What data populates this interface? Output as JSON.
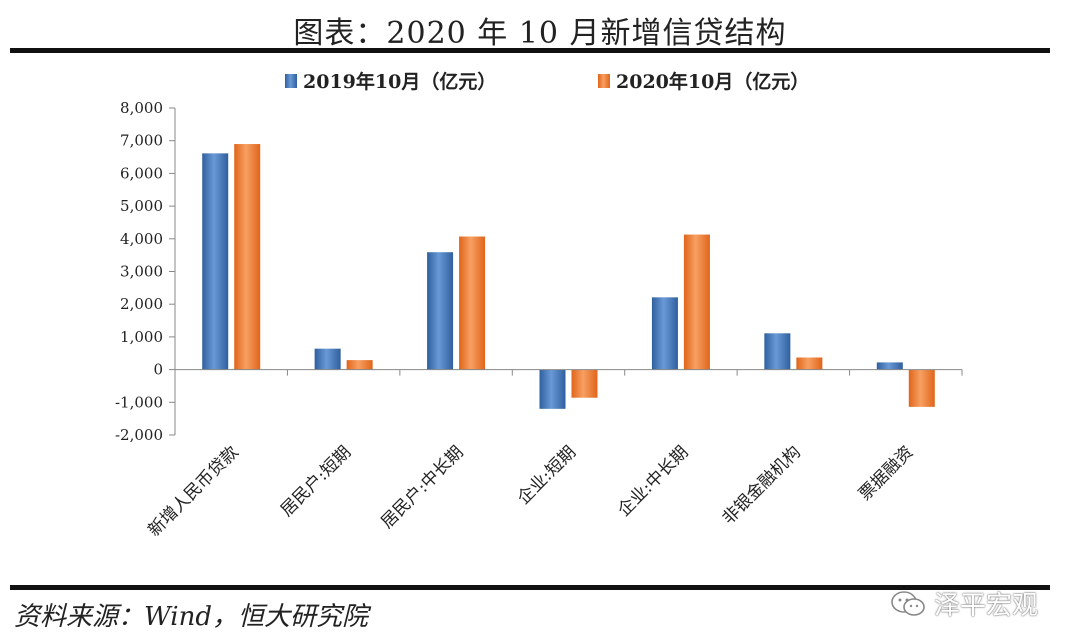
{
  "title": "图表：2020 年 10 月新增信贷结构",
  "source": "资料来源：Wind，恒大研究院",
  "watermark": "泽平宏观",
  "colors": {
    "s2019": "#4a7fc1",
    "s2020": "#ee7b30"
  },
  "chart_data": {
    "type": "bar",
    "categories": [
      "新增人民币贷款",
      "居民户:短期",
      "居民户:中长期",
      "企业:短期",
      "企业:中长期",
      "非银金融机构",
      "票据融资"
    ],
    "series": [
      {
        "name": "2019年10月（亿元）",
        "values": [
          6613,
          640,
          3590,
          -1200,
          2210,
          1110,
          220
        ]
      },
      {
        "name": "2020年10月（亿元）",
        "values": [
          6898,
          290,
          4070,
          -860,
          4130,
          370,
          -1140
        ]
      }
    ],
    "ylim": [
      -2000,
      8000
    ],
    "yticks": [
      "-2,000",
      "-1,000",
      "0",
      "1,000",
      "2,000",
      "3,000",
      "4,000",
      "5,000",
      "6,000",
      "7,000",
      "8,000"
    ],
    "legend_position": "top-center",
    "grid": false
  }
}
